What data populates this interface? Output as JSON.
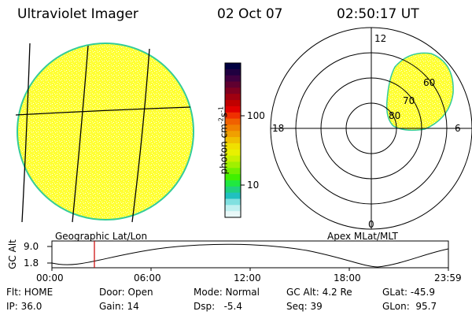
{
  "header": {
    "instrument": "Ultraviolet Imager",
    "date": "02 Oct 07",
    "time": "02:50:17 UT"
  },
  "colorbar": {
    "unit_label": "photon cm",
    "unit_sup": "-2",
    "unit_mid": "s",
    "unit_sup2": "-1",
    "ticks": [
      "100",
      "10"
    ],
    "colors": [
      "#000040",
      "#200040",
      "#400040",
      "#600030",
      "#800020",
      "#a00010",
      "#c00000",
      "#e00000",
      "#f03000",
      "#f06000",
      "#f08000",
      "#f0a000",
      "#f0c000",
      "#f0e000",
      "#e8f000",
      "#c8f000",
      "#a0f000",
      "#70f000",
      "#40f000",
      "#20e840",
      "#20d080",
      "#20c0c0",
      "#80e0e0",
      "#c0f0f0",
      "#e8f8f8"
    ]
  },
  "left_panel": {
    "label": "Geographic Lat/Lon",
    "fill": "#ffff33",
    "edge": "#33cc99"
  },
  "right_panel": {
    "label": "Apex MLat/MLT",
    "hour_labels": [
      "12",
      "18",
      "6",
      "0"
    ],
    "lat_labels": [
      "60",
      "70",
      "80"
    ]
  },
  "altitude_plot": {
    "ylabel": "GC Alt",
    "yticks": [
      "9.0",
      "1.8"
    ],
    "xticks": [
      "00:00",
      "06:00",
      "12:00",
      "18:00",
      "23:59"
    ],
    "marker_time": "02:50",
    "marker_color": "#cc0000"
  },
  "info_rows": [
    [
      "Flt: HOME",
      "Door: Open",
      "Mode: Normal",
      "GC Alt: 4.2 Re",
      "GLat: -45.9"
    ],
    [
      "IP: 36.0",
      "Gain: 14",
      "Dsp:   -5.4",
      "Seq: 39",
      "GLon:  95.7"
    ]
  ]
}
